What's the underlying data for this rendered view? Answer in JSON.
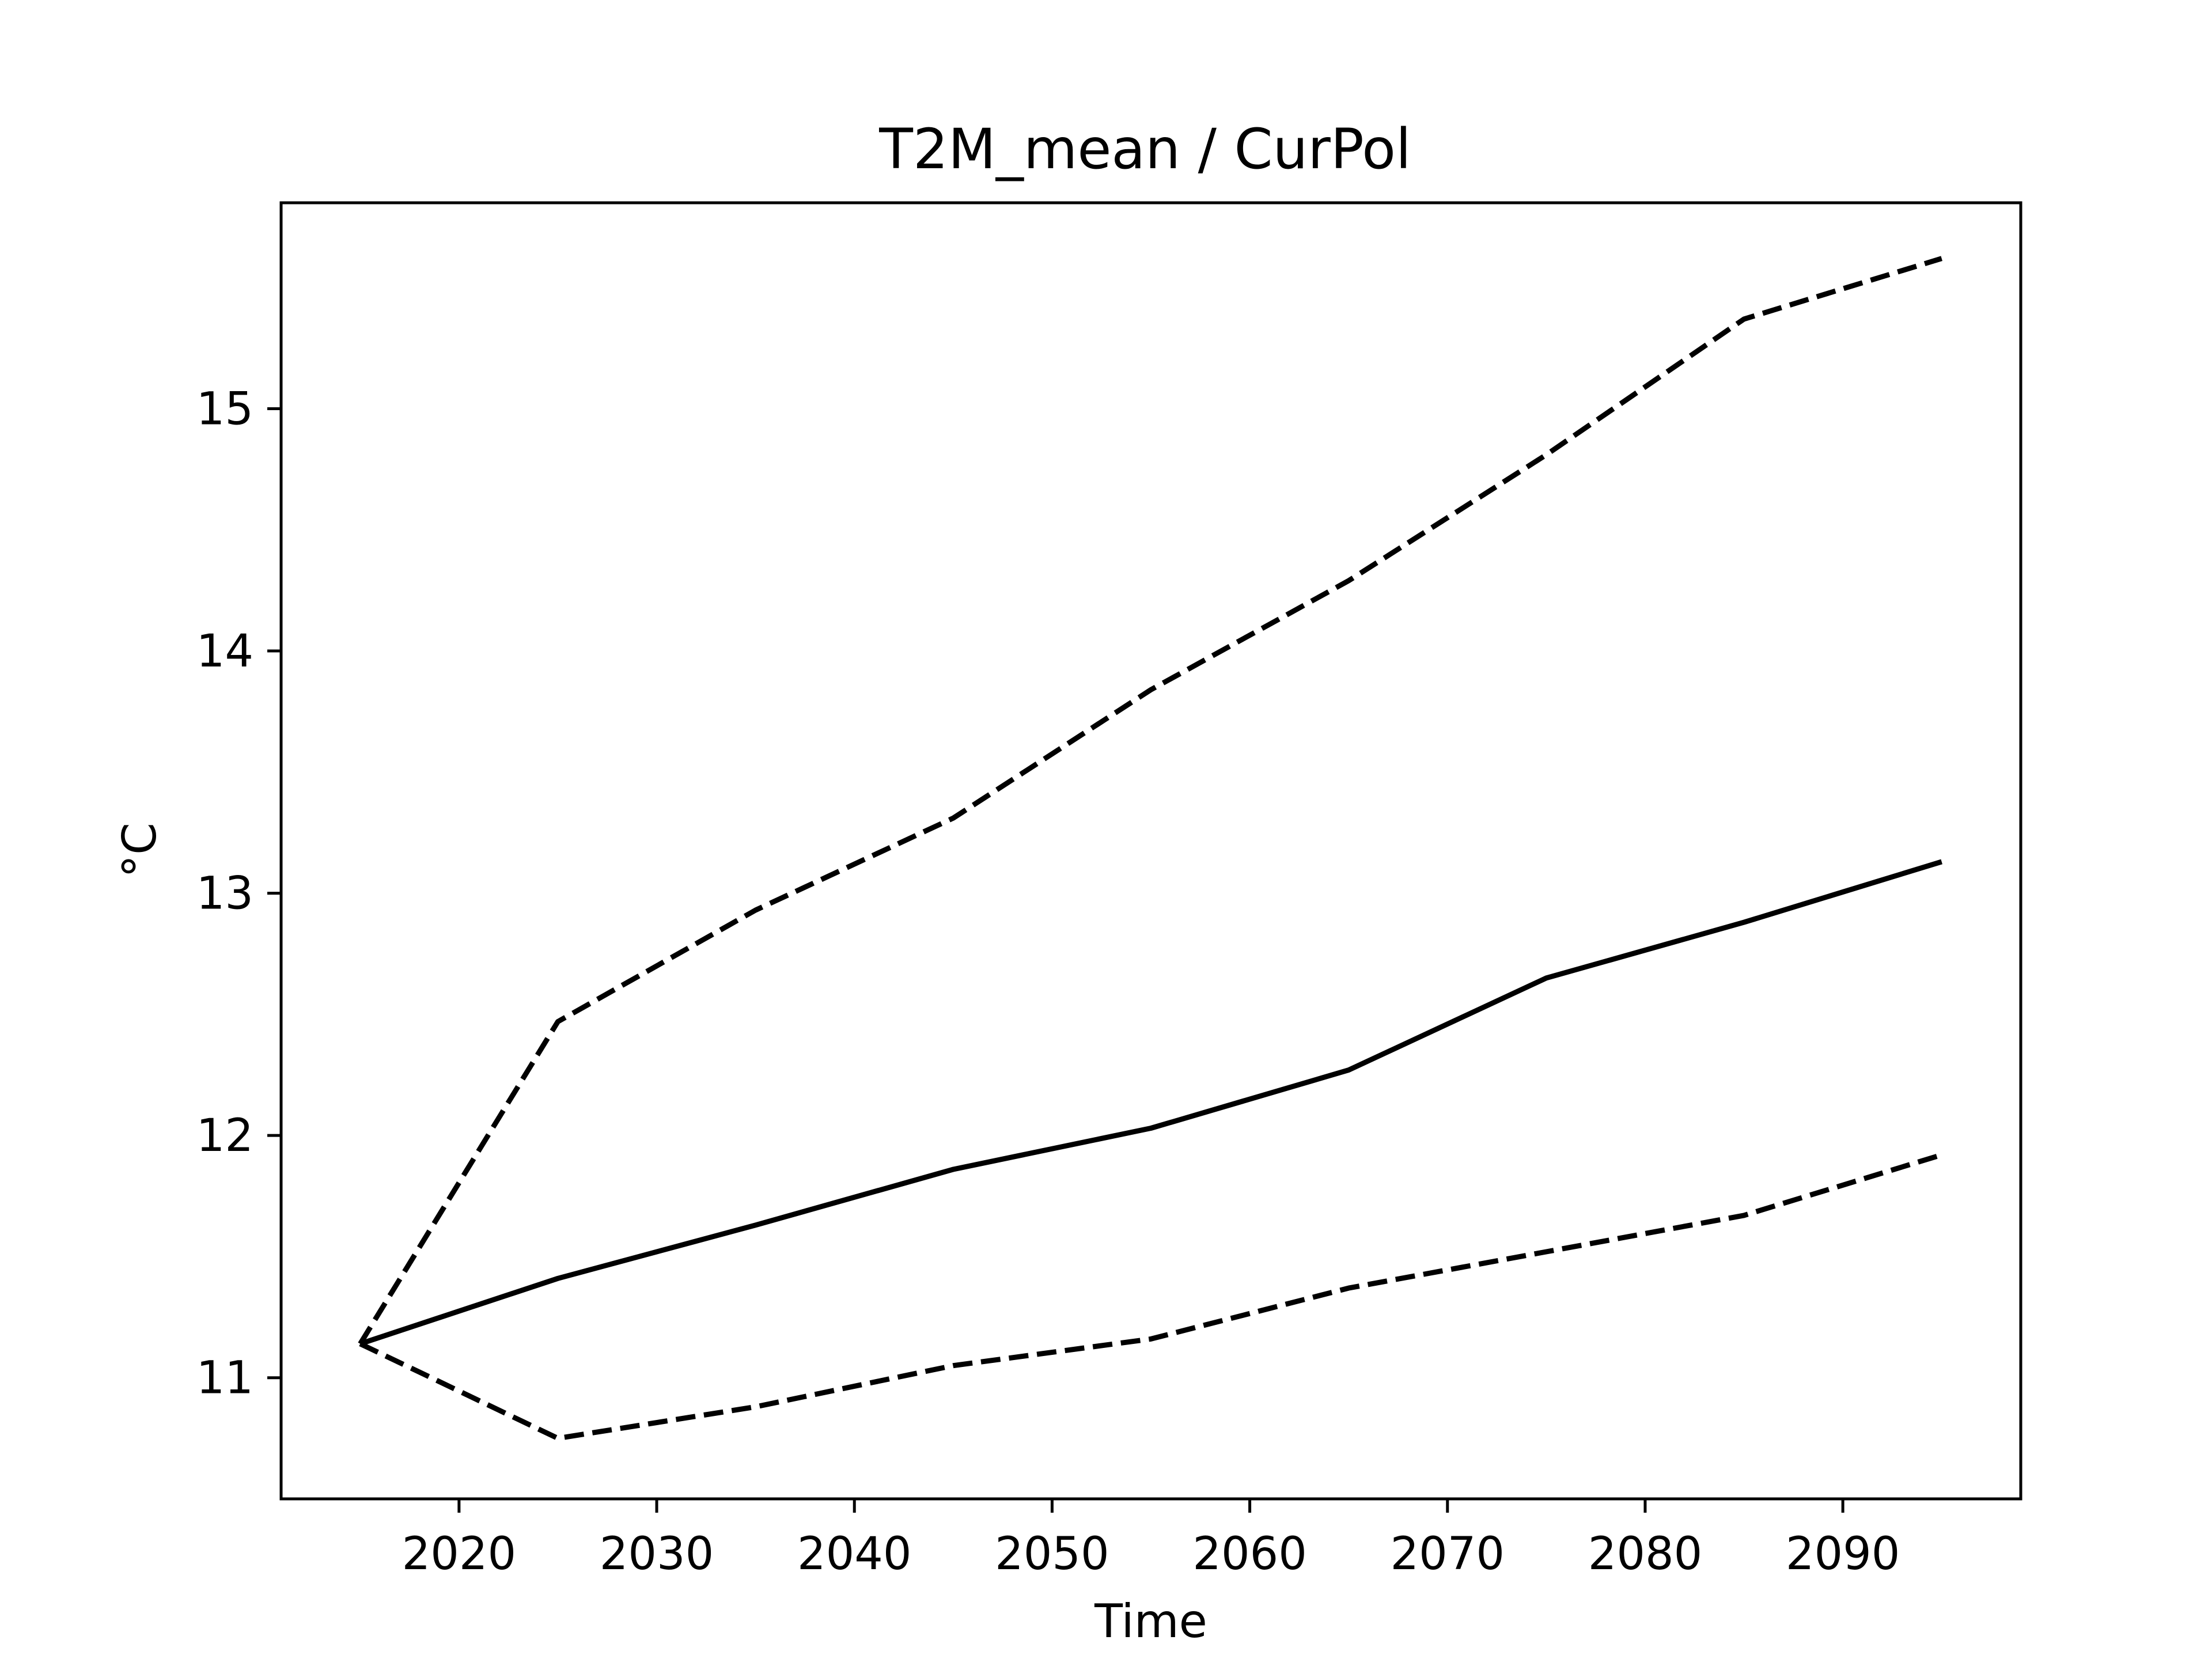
{
  "chart_data": {
    "type": "line",
    "title": "T2M_mean / CurPol",
    "xlabel": "Time",
    "ylabel": "°C",
    "xlim": [
      2011,
      2099
    ],
    "ylim": [
      10.5,
      15.85
    ],
    "xticks": [
      2020,
      2030,
      2040,
      2050,
      2060,
      2070,
      2080,
      2090
    ],
    "yticks": [
      11,
      12,
      13,
      14,
      15
    ],
    "grid": false,
    "x": [
      2015,
      2025,
      2035,
      2045,
      2055,
      2065,
      2075,
      2085,
      2095
    ],
    "series": [
      {
        "style": "solid",
        "color": "#000000",
        "values": [
          11.14,
          11.41,
          11.63,
          11.86,
          12.03,
          12.27,
          12.65,
          12.88,
          13.13
        ]
      },
      {
        "style": "dashed",
        "color": "#000000",
        "values": [
          11.14,
          12.47,
          12.93,
          13.31,
          13.84,
          14.29,
          14.81,
          15.37,
          15.62
        ]
      },
      {
        "style": "dashed",
        "color": "#000000",
        "values": [
          11.14,
          10.75,
          10.88,
          11.05,
          11.16,
          11.37,
          11.52,
          11.67,
          11.92
        ]
      }
    ]
  }
}
